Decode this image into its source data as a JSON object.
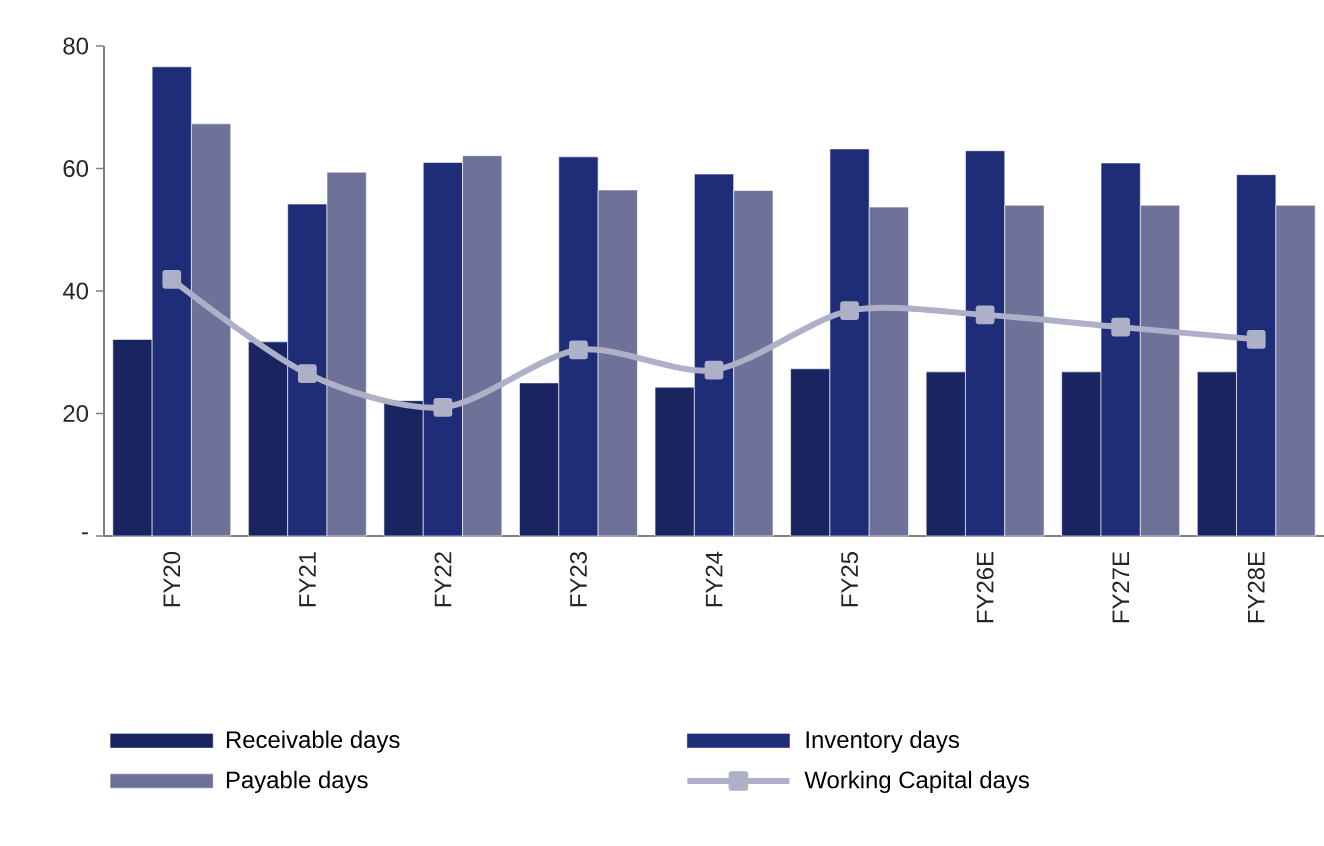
{
  "chart_data": {
    "type": "bar",
    "categories": [
      "FY20",
      "FY21",
      "FY22",
      "FY23",
      "FY24",
      "FY25",
      "FY26E",
      "FY27E",
      "FY28E"
    ],
    "series": [
      {
        "name": "Receivable days",
        "color": "#1a2460",
        "values": [
          32.1,
          31.7,
          22.1,
          25.0,
          24.3,
          27.3,
          26.8,
          26.8,
          26.8
        ]
      },
      {
        "name": "Inventory days",
        "color": "#1f2d78",
        "values": [
          76.6,
          54.2,
          61.0,
          61.9,
          59.1,
          63.2,
          62.9,
          60.9,
          59.0
        ]
      },
      {
        "name": "Payable days",
        "color": "#6e7298",
        "values": [
          67.3,
          59.4,
          62.1,
          56.5,
          56.4,
          53.7,
          54.0,
          54.0,
          54.0
        ]
      },
      {
        "name": "Working Capital days",
        "type": "line",
        "color": "#aeb0c8",
        "marker": "square",
        "values": [
          41.9,
          26.5,
          21.0,
          30.4,
          27.1,
          36.8,
          36.1,
          34.1,
          32.1
        ]
      }
    ],
    "ylim": [
      0,
      80
    ],
    "yticks": [
      {
        "value": 0,
        "label": "-"
      },
      20,
      40,
      60,
      80
    ],
    "legend": "bottom"
  }
}
